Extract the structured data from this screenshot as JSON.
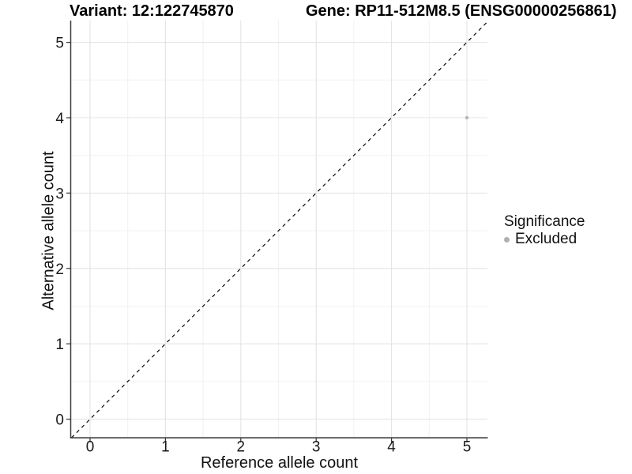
{
  "chart_data": {
    "type": "scatter",
    "title_left": "Variant: 12:122745870",
    "title_right": "Gene: RP11-512M8.5 (ENSG00000256861)",
    "xlabel": "Reference allele count",
    "ylabel": "Alternative allele count",
    "xlim": [
      -0.25,
      5.27
    ],
    "ylim": [
      -0.25,
      5.29
    ],
    "x_ticks": [
      0,
      1,
      2,
      3,
      4,
      5
    ],
    "y_ticks": [
      0,
      1,
      2,
      3,
      4,
      5
    ],
    "minor_ticks": [
      0.5,
      1.5,
      2.5,
      3.5,
      4.5
    ],
    "grid": "major and minor gridlines on white panel",
    "points": [
      {
        "x": 5,
        "y": 4,
        "series": "Excluded"
      }
    ],
    "reference_line": {
      "type": "identity y=x",
      "style": "dashed",
      "color": "#111111"
    },
    "legend": {
      "title": "Significance",
      "position": "right",
      "entries": [
        {
          "label": "Excluded",
          "color": "#b0b0b0"
        }
      ]
    },
    "colors": {
      "point": "#b5b5b5",
      "grid_major": "#e4e4e4",
      "grid_minor": "#f1f1f1",
      "axis_line": "#3c3c3c",
      "tick": "#333333",
      "tick_label": "#1a1a1a"
    }
  }
}
